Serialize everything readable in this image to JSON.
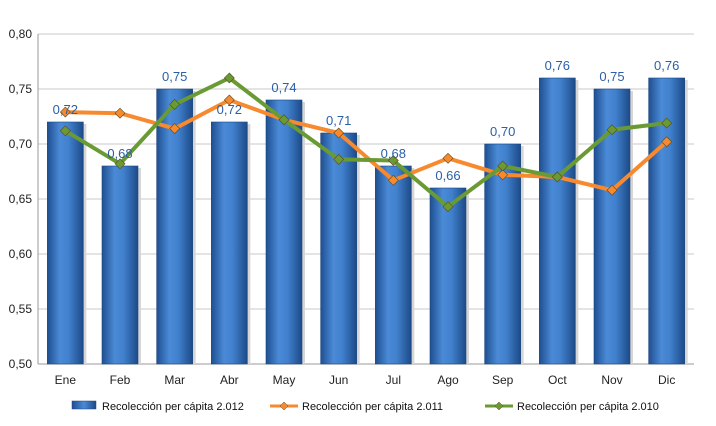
{
  "chart_data": {
    "type": "bar",
    "categories": [
      "Ene",
      "Feb",
      "Mar",
      "Abr",
      "May",
      "Jun",
      "Jul",
      "Ago",
      "Sep",
      "Oct",
      "Nov",
      "Dic"
    ],
    "ylim": [
      0.5,
      0.8
    ],
    "ytick_values": [
      0.5,
      0.55,
      0.6,
      0.65,
      0.7,
      0.75,
      0.8
    ],
    "ytick_labels": [
      "0,50",
      "0,55",
      "0,60",
      "0,65",
      "0,70",
      "0,75",
      "0,80"
    ],
    "grid": true,
    "legend_position": "bottom",
    "series": [
      {
        "name": "Recolección per cápita 2.012",
        "kind": "bar",
        "color": "#3b78c4",
        "values": [
          0.72,
          0.68,
          0.75,
          0.72,
          0.74,
          0.71,
          0.68,
          0.66,
          0.7,
          0.76,
          0.75,
          0.76
        ],
        "data_labels": [
          "0,72",
          "0,68",
          "0,75",
          "0,72",
          "0,74",
          "0,71",
          "0,68",
          "0,66",
          "0,70",
          "0,76",
          "0,75",
          "0,76"
        ]
      },
      {
        "name": "Recolección per cápita 2.011",
        "kind": "line",
        "color": "#f7892e",
        "values": [
          0.729,
          0.728,
          0.714,
          0.74,
          0.722,
          0.71,
          0.667,
          0.687,
          0.672,
          0.67,
          0.658,
          0.702
        ]
      },
      {
        "name": "Recolección per cápita 2.010",
        "kind": "line",
        "color": "#6a9a33",
        "values": [
          0.712,
          0.682,
          0.736,
          0.76,
          0.722,
          0.686,
          0.685,
          0.643,
          0.68,
          0.67,
          0.713,
          0.719
        ]
      }
    ]
  }
}
